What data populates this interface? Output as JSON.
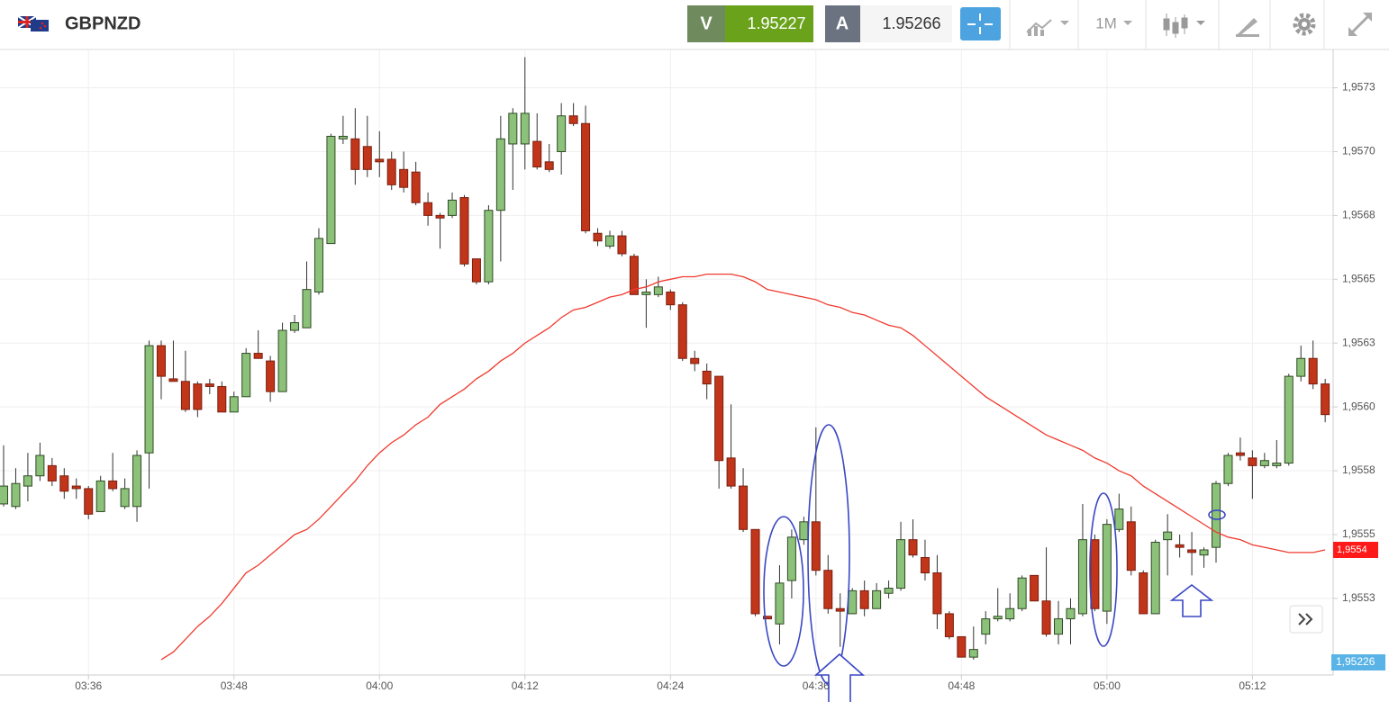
{
  "toolbar": {
    "symbol": "GBPNZD",
    "sell_label": "V",
    "sell_price": "1.95227",
    "buy_label": "A",
    "buy_price": "1.95266",
    "timeframe": "1M"
  },
  "chart_data": {
    "type": "candlestick",
    "categories": [
      null,
      null,
      null,
      null,
      null,
      null,
      null,
      "03:36",
      null,
      null,
      null,
      null,
      null,
      null,
      null,
      null,
      null,
      null,
      null,
      "03:48",
      null,
      null,
      null,
      null,
      null,
      null,
      null,
      null,
      null,
      null,
      null,
      "04:00",
      null,
      null,
      null,
      null,
      null,
      null,
      null,
      null,
      null,
      null,
      null,
      "04:12",
      null,
      null,
      null,
      null,
      null,
      null,
      null,
      null,
      null,
      null,
      null,
      "04:24",
      null,
      null,
      null,
      null,
      null,
      null,
      null,
      null,
      null,
      null,
      null,
      "04:36",
      null,
      null,
      null,
      null,
      null,
      null,
      null,
      null,
      null,
      null,
      null,
      "04:48",
      null,
      null,
      null,
      null,
      null,
      null,
      null,
      null,
      null,
      null,
      null,
      "05:00",
      null,
      null,
      null,
      null,
      null,
      null,
      null,
      null,
      null,
      null,
      null,
      "05:12",
      null,
      null,
      null,
      null,
      null,
      null
    ],
    "open": [
      1.95562,
      1.95561,
      1.95569,
      1.95573,
      1.95577,
      1.95573,
      1.95569,
      1.95568,
      1.95559,
      1.95571,
      1.95561,
      1.95561,
      1.95582,
      1.95624,
      1.95611,
      1.9561,
      1.95609,
      1.95609,
      1.95608,
      1.95598,
      1.95604,
      1.95621,
      1.95618,
      1.95606,
      1.9563,
      1.95631,
      1.95645,
      1.95664,
      1.95705,
      1.95705,
      1.95702,
      1.95697,
      1.95697,
      1.95693,
      1.95692,
      1.9568,
      1.95675,
      1.95675,
      1.95682,
      1.95658,
      1.95649,
      1.95677,
      1.95703,
      1.95703,
      1.95704,
      1.95696,
      1.957,
      1.95714,
      1.95711,
      1.95668,
      1.95663,
      1.95667,
      1.95659,
      1.95644,
      1.95644,
      1.95645,
      1.9564,
      1.95619,
      1.95614,
      1.95612,
      1.9558,
      1.95569,
      1.95552,
      1.95518,
      1.95515,
      1.95532,
      1.95548,
      1.95555,
      1.95536,
      1.95521,
      1.95519,
      1.95528,
      1.95521,
      1.95527,
      1.95529,
      1.95548,
      1.95541,
      1.95535,
      1.95519,
      1.9551,
      1.95502,
      1.95511,
      1.95517,
      1.95517,
      1.95521,
      1.95534,
      1.95524,
      1.95511,
      1.95517,
      1.95519,
      1.95548,
      1.9552,
      1.95552,
      1.95555,
      1.95535,
      1.95519,
      1.95548,
      1.95546,
      1.95544,
      1.95542,
      1.95545,
      1.9557,
      1.95582,
      1.9558,
      1.95577,
      1.95577,
      1.95578,
      1.95612,
      1.95619,
      1.95609
    ],
    "high": [
      1.95585,
      1.95576,
      1.95582,
      1.95586,
      1.9558,
      1.95576,
      1.95572,
      1.95569,
      1.95573,
      1.95582,
      1.95572,
      1.95583,
      1.95626,
      1.95626,
      1.95626,
      1.95622,
      1.9561,
      1.95611,
      1.9561,
      1.95606,
      1.95623,
      1.9563,
      1.9562,
      1.95633,
      1.95636,
      1.95657,
      1.9567,
      1.95707,
      1.95714,
      1.95717,
      1.95714,
      1.95708,
      1.957,
      1.957,
      1.95696,
      1.95684,
      1.95676,
      1.95684,
      1.95683,
      1.95658,
      1.95679,
      1.95714,
      1.95717,
      1.95737,
      1.95715,
      1.95703,
      1.95719,
      1.95719,
      1.95718,
      1.9567,
      1.95669,
      1.95669,
      1.9566,
      1.9565,
      1.95651,
      1.95646,
      1.95641,
      1.95622,
      1.95617,
      1.95612,
      1.95601,
      1.95576,
      1.95552,
      1.95518,
      1.95538,
      1.95552,
      1.95557,
      1.95592,
      1.95542,
      1.95527,
      1.95529,
      1.95532,
      1.95531,
      1.95532,
      1.95555,
      1.95556,
      1.95548,
      1.95542,
      1.9552,
      1.9551,
      1.95514,
      1.9552,
      1.95529,
      1.95527,
      1.95534,
      1.95534,
      1.95545,
      1.95524,
      1.95525,
      1.95562,
      1.9555,
      1.95556,
      1.95566,
      1.95561,
      1.95536,
      1.95548,
      1.95558,
      1.9555,
      1.95551,
      1.95545,
      1.95571,
      1.95582,
      1.95588,
      1.95583,
      1.95582,
      1.95587,
      1.95613,
      1.95624,
      1.95626,
      1.95611
    ],
    "low": [
      1.95561,
      1.9556,
      1.95563,
      1.95571,
      1.95569,
      1.95564,
      1.95564,
      1.95556,
      1.95559,
      1.95567,
      1.9556,
      1.95555,
      1.95568,
      1.95603,
      1.9561,
      1.95598,
      1.95596,
      1.95605,
      1.95598,
      1.95598,
      1.95604,
      1.95619,
      1.95602,
      1.95606,
      1.95629,
      1.95631,
      1.95644,
      1.95664,
      1.95703,
      1.95687,
      1.9569,
      1.9569,
      1.95685,
      1.95684,
      1.95679,
      1.95671,
      1.95662,
      1.95674,
      1.95655,
      1.95648,
      1.95648,
      1.95657,
      1.95685,
      1.95693,
      1.95693,
      1.95692,
      1.95691,
      1.9571,
      1.95668,
      1.95663,
      1.95662,
      1.95659,
      1.95644,
      1.95631,
      1.95643,
      1.95638,
      1.95618,
      1.95614,
      1.95603,
      1.95568,
      1.95568,
      1.95551,
      1.95518,
      1.95517,
      1.95507,
      1.95525,
      1.95546,
      1.95534,
      1.95519,
      1.95506,
      1.95519,
      1.95518,
      1.95521,
      1.95525,
      1.95528,
      1.95541,
      1.95532,
      1.95513,
      1.95509,
      1.95502,
      1.95501,
      1.95507,
      1.95516,
      1.95516,
      1.9552,
      1.95524,
      1.9551,
      1.95507,
      1.95507,
      1.95518,
      1.9552,
      1.95515,
      1.95551,
      1.95534,
      1.95519,
      1.95519,
      1.95534,
      1.95541,
      1.95534,
      1.95537,
      1.95539,
      1.95569,
      1.95579,
      1.95564,
      1.95576,
      1.95576,
      1.95577,
      1.9561,
      1.95607,
      1.95594
    ],
    "close": [
      1.95569,
      1.9557,
      1.95573,
      1.95581,
      1.95571,
      1.95567,
      1.95568,
      1.95558,
      1.95571,
      1.95568,
      1.95568,
      1.95581,
      1.95624,
      1.95612,
      1.9561,
      1.95599,
      1.95599,
      1.95608,
      1.95598,
      1.95604,
      1.95621,
      1.95619,
      1.95606,
      1.9563,
      1.95633,
      1.95646,
      1.95666,
      1.95706,
      1.95706,
      1.95693,
      1.95693,
      1.95696,
      1.95687,
      1.95686,
      1.9568,
      1.95675,
      1.95674,
      1.95681,
      1.95656,
      1.95649,
      1.95677,
      1.95705,
      1.95715,
      1.95715,
      1.95694,
      1.95693,
      1.95714,
      1.95711,
      1.95669,
      1.95665,
      1.95667,
      1.9566,
      1.95644,
      1.95645,
      1.95647,
      1.9564,
      1.95619,
      1.95617,
      1.95609,
      1.95579,
      1.95569,
      1.95552,
      1.95519,
      1.95517,
      1.95531,
      1.95549,
      1.95555,
      1.95536,
      1.95521,
      1.9552,
      1.95528,
      1.95521,
      1.95528,
      1.95529,
      1.95548,
      1.95542,
      1.95535,
      1.95519,
      1.9551,
      1.95502,
      1.95505,
      1.95517,
      1.95518,
      1.95521,
      1.95533,
      1.95524,
      1.95511,
      1.95517,
      1.95521,
      1.95548,
      1.95521,
      1.95554,
      1.9556,
      1.95536,
      1.95519,
      1.95547,
      1.95551,
      1.95545,
      1.95543,
      1.95544,
      1.9557,
      1.95581,
      1.95581,
      1.95577,
      1.95579,
      1.95578,
      1.95612,
      1.95619,
      1.95609,
      1.95597
    ],
    "up_color": "#8cc17a",
    "down_color": "#c1351b",
    "ma": {
      "color": "#f03a2e",
      "label": "1,9554",
      "values": [
        null,
        null,
        null,
        null,
        null,
        null,
        null,
        null,
        null,
        null,
        null,
        null,
        null,
        1.95501,
        1.95504,
        1.95509,
        1.95514,
        1.95518,
        1.95523,
        1.95529,
        1.95535,
        1.95538,
        1.95542,
        1.95546,
        1.9555,
        1.95552,
        1.95556,
        1.95561,
        1.95566,
        1.95571,
        1.95577,
        1.95582,
        1.95586,
        1.95589,
        1.95593,
        1.95596,
        1.95601,
        1.95604,
        1.95607,
        1.95611,
        1.95614,
        1.95618,
        1.95621,
        1.95625,
        1.95628,
        1.95631,
        1.95635,
        1.95638,
        1.95639,
        1.95641,
        1.95643,
        1.95644,
        1.95646,
        1.95647,
        1.95649,
        1.9565,
        1.95651,
        1.95651,
        1.95652,
        1.95652,
        1.95652,
        1.95651,
        1.95649,
        1.95646,
        1.95645,
        1.95644,
        1.95643,
        1.95642,
        1.9564,
        1.95639,
        1.95637,
        1.95636,
        1.95634,
        1.95632,
        1.95631,
        1.95628,
        1.95624,
        1.9562,
        1.95616,
        1.95612,
        1.95608,
        1.95604,
        1.95601,
        1.95598,
        1.95595,
        1.95592,
        1.95589,
        1.95587,
        1.95585,
        1.95583,
        1.9558,
        1.95578,
        1.95575,
        1.95573,
        1.95569,
        1.95566,
        1.95563,
        1.9556,
        1.95557,
        1.95554,
        1.95551,
        1.95549,
        1.95548,
        1.95546,
        1.95545,
        1.95544,
        1.95543,
        1.95543,
        1.95543,
        1.95544
      ]
    },
    "price_label": "1,95226",
    "ylim": [
      1.95495,
      1.9574
    ],
    "yticks": [
      {
        "value": 1.95525,
        "label": "1,9553"
      },
      {
        "value": 1.9555,
        "label": "1,9555"
      },
      {
        "value": 1.95575,
        "label": "1,9558"
      },
      {
        "value": 1.956,
        "label": "1,9560"
      },
      {
        "value": 1.95625,
        "label": "1,9563"
      },
      {
        "value": 1.9565,
        "label": "1,9565"
      },
      {
        "value": 1.95675,
        "label": "1,9568"
      },
      {
        "value": 1.957,
        "label": "1,9570"
      },
      {
        "value": 1.95725,
        "label": "1,9573"
      }
    ],
    "grid": true
  }
}
